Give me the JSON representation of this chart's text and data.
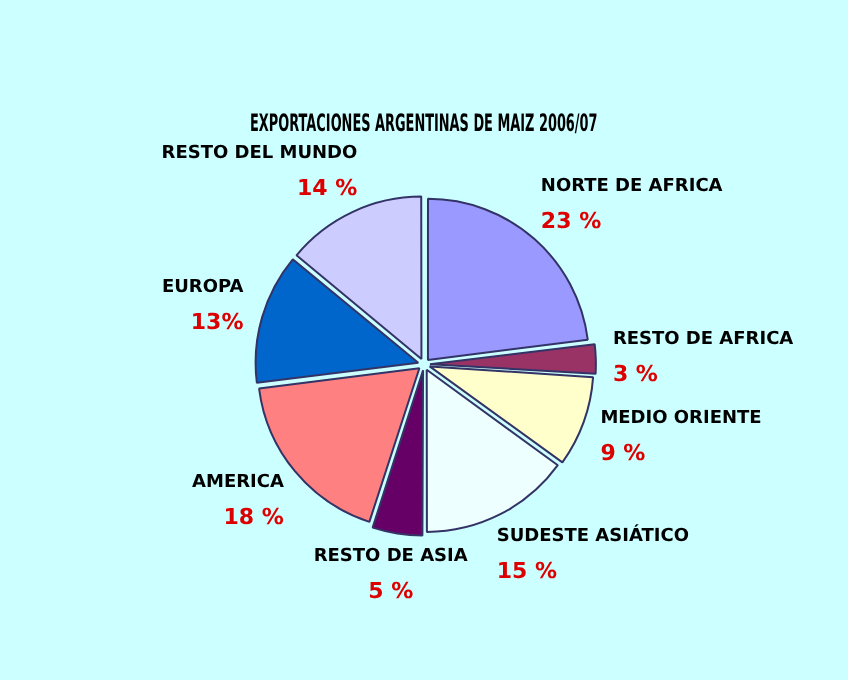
{
  "chart_data": {
    "type": "pie",
    "title": "EXPORTACIONES ARGENTINAS DE MAIZ 2006/07",
    "categories": [
      "NORTE DE AFRICA",
      "RESTO DE AFRICA",
      "MEDIO ORIENTE",
      "SUDESTE ASIÁTICO",
      "RESTO DE ASIA",
      "AMERICA",
      "EUROPA",
      "RESTO DEL MUNDO"
    ],
    "values": [
      23,
      3,
      9,
      15,
      5,
      18,
      13,
      14
    ],
    "colors": [
      "#9999ff",
      "#993366",
      "#ffffcc",
      "#eeffff",
      "#660066",
      "#ff8080",
      "#0066cc",
      "#ccccff"
    ],
    "value_labels": [
      "23 %",
      "3 %",
      "9 %",
      "15 %",
      "5 %",
      "18 %",
      "13%",
      "14 %"
    ],
    "legend": false
  }
}
